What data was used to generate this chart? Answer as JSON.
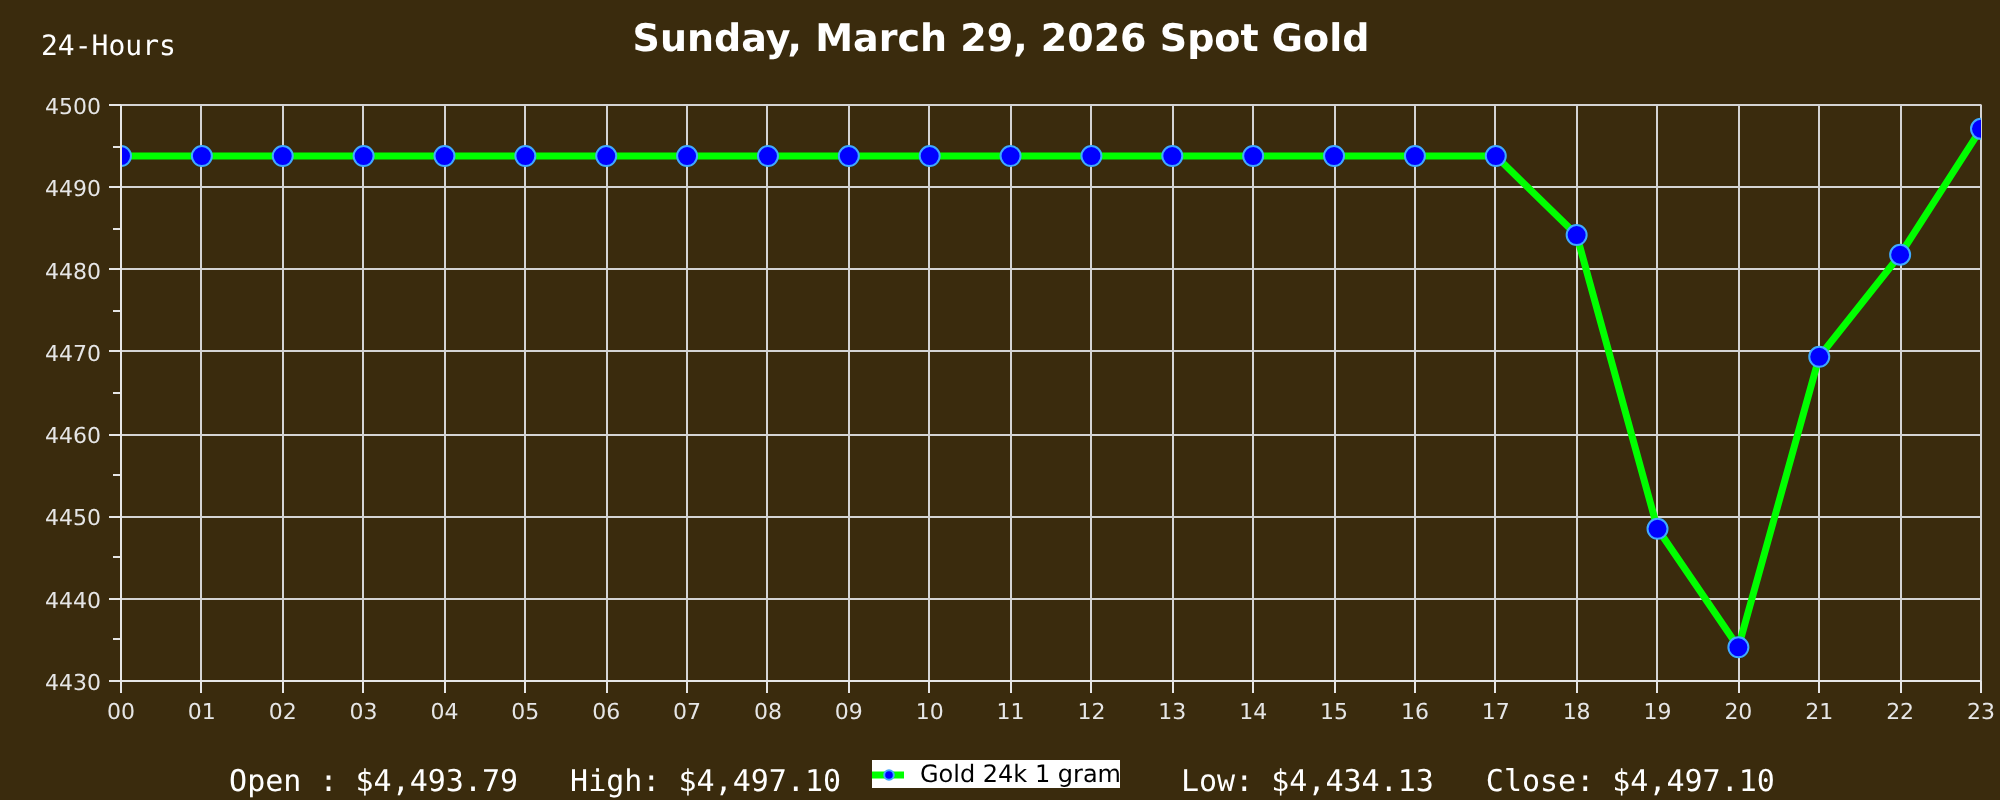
{
  "chart_data": {
    "type": "line",
    "title": "Sunday, March 29, 2026 Spot Gold",
    "annotations": [
      "24-Hours",
      "Open : $4,493.79",
      "High: $4,497.10",
      "Low: $4,434.13",
      "Close: $4,497.10"
    ],
    "x": [
      0,
      1,
      2,
      3,
      4,
      5,
      6,
      7,
      8,
      9,
      10,
      11,
      12,
      13,
      14,
      15,
      16,
      17,
      18,
      19,
      20,
      21,
      22,
      23
    ],
    "series": [
      {
        "name": "Gold 24k 1 gram",
        "color": "#00ff00",
        "values": [
          4493.8,
          4493.8,
          4493.8,
          4493.8,
          4493.8,
          4493.8,
          4493.8,
          4493.8,
          4493.8,
          4493.8,
          4493.8,
          4493.8,
          4493.8,
          4493.8,
          4493.8,
          4493.8,
          4493.8,
          4493.8,
          4484.2,
          4448.5,
          4434.1,
          4469.4,
          4481.8,
          4497.1
        ]
      }
    ],
    "xlim": [
      0,
      23
    ],
    "xticks": [
      {
        "value": 0,
        "label": "00"
      },
      {
        "value": 1,
        "label": "01"
      },
      {
        "value": 2,
        "label": "02"
      },
      {
        "value": 3,
        "label": "03"
      },
      {
        "value": 4,
        "label": "04"
      },
      {
        "value": 5,
        "label": "05"
      },
      {
        "value": 6,
        "label": "06"
      },
      {
        "value": 7,
        "label": "07"
      },
      {
        "value": 8,
        "label": "08"
      },
      {
        "value": 9,
        "label": "09"
      },
      10,
      11,
      12,
      13,
      14,
      15,
      16,
      17,
      18,
      19,
      20,
      21,
      22,
      23
    ],
    "ylim": [
      4430,
      4500
    ],
    "yticks": [
      4430,
      {
        "value": 4435,
        "label": null
      },
      4440,
      {
        "value": 4445,
        "label": null
      },
      4450,
      {
        "value": 4455,
        "label": null
      },
      4460,
      {
        "value": 4465,
        "label": null
      },
      4470,
      {
        "value": 4475,
        "label": null
      },
      4480,
      {
        "value": 4485,
        "label": null
      },
      4490,
      {
        "value": 4495,
        "label": null
      },
      4500
    ],
    "grid": true,
    "legend": "bottom",
    "marker": "circle",
    "line_style": "solid"
  }
}
